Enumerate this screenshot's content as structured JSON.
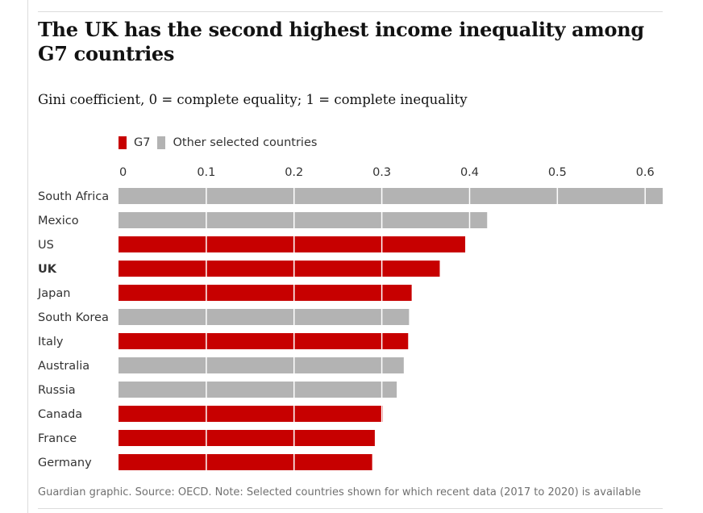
{
  "title": "The UK has the second highest income inequality among G7 countries",
  "subtitle": "Gini coefficient, 0 = complete equality; 1 = complete inequality",
  "legend": [
    {
      "label": "G7",
      "color": "#c70000"
    },
    {
      "label": "Other selected countries",
      "color": "#b3b3b3"
    }
  ],
  "source": "Guardian graphic. Source: OECD. Note: Selected countries shown for which recent data (2017 to 2020) is available",
  "chart_data": {
    "type": "bar",
    "orientation": "horizontal",
    "xlim": [
      0,
      0.62
    ],
    "ticks": [
      0,
      0.1,
      0.2,
      0.3,
      0.4,
      0.5,
      0.6
    ],
    "tick_labels": [
      "0",
      "0.1",
      "0.2",
      "0.3",
      "0.4",
      "0.5",
      "0.6"
    ],
    "grid": true,
    "categories": [
      "South Africa",
      "Mexico",
      "US",
      "UK",
      "Japan",
      "South Korea",
      "Italy",
      "Australia",
      "Russia",
      "Canada",
      "France",
      "Germany"
    ],
    "values": [
      0.62,
      0.42,
      0.395,
      0.366,
      0.334,
      0.331,
      0.33,
      0.325,
      0.317,
      0.301,
      0.292,
      0.289
    ],
    "groups": [
      "other",
      "other",
      "g7",
      "g7",
      "g7",
      "other",
      "g7",
      "other",
      "other",
      "g7",
      "g7",
      "g7"
    ],
    "highlight": "UK",
    "colors": {
      "g7": "#c70000",
      "other": "#b3b3b3"
    }
  }
}
